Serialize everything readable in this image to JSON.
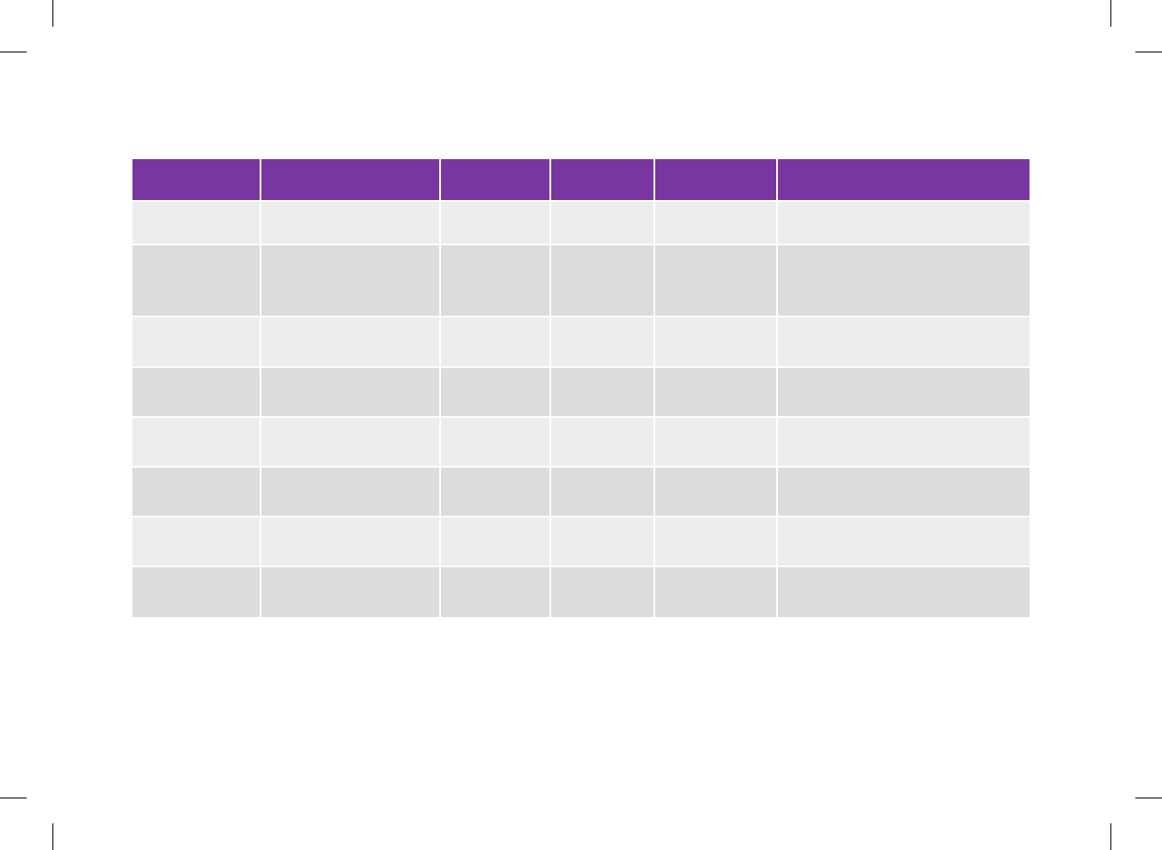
{
  "colors": {
    "header_bg": "#7836A0",
    "row_light": "#EDEDED",
    "row_dark": "#DCDCDC",
    "border": "#FFFFFF"
  },
  "table": {
    "headers": [
      "",
      "",
      "",
      "",
      "",
      ""
    ],
    "rows": [
      [
        "",
        "",
        "",
        "",
        "",
        ""
      ],
      [
        "",
        "",
        "",
        "",
        "",
        ""
      ],
      [
        "",
        "",
        "",
        "",
        "",
        ""
      ],
      [
        "",
        "",
        "",
        "",
        "",
        ""
      ],
      [
        "",
        "",
        "",
        "",
        "",
        ""
      ],
      [
        "",
        "",
        "",
        "",
        "",
        ""
      ],
      [
        "",
        "",
        "",
        "",
        "",
        ""
      ],
      [
        "",
        "",
        "",
        "",
        "",
        ""
      ]
    ]
  }
}
